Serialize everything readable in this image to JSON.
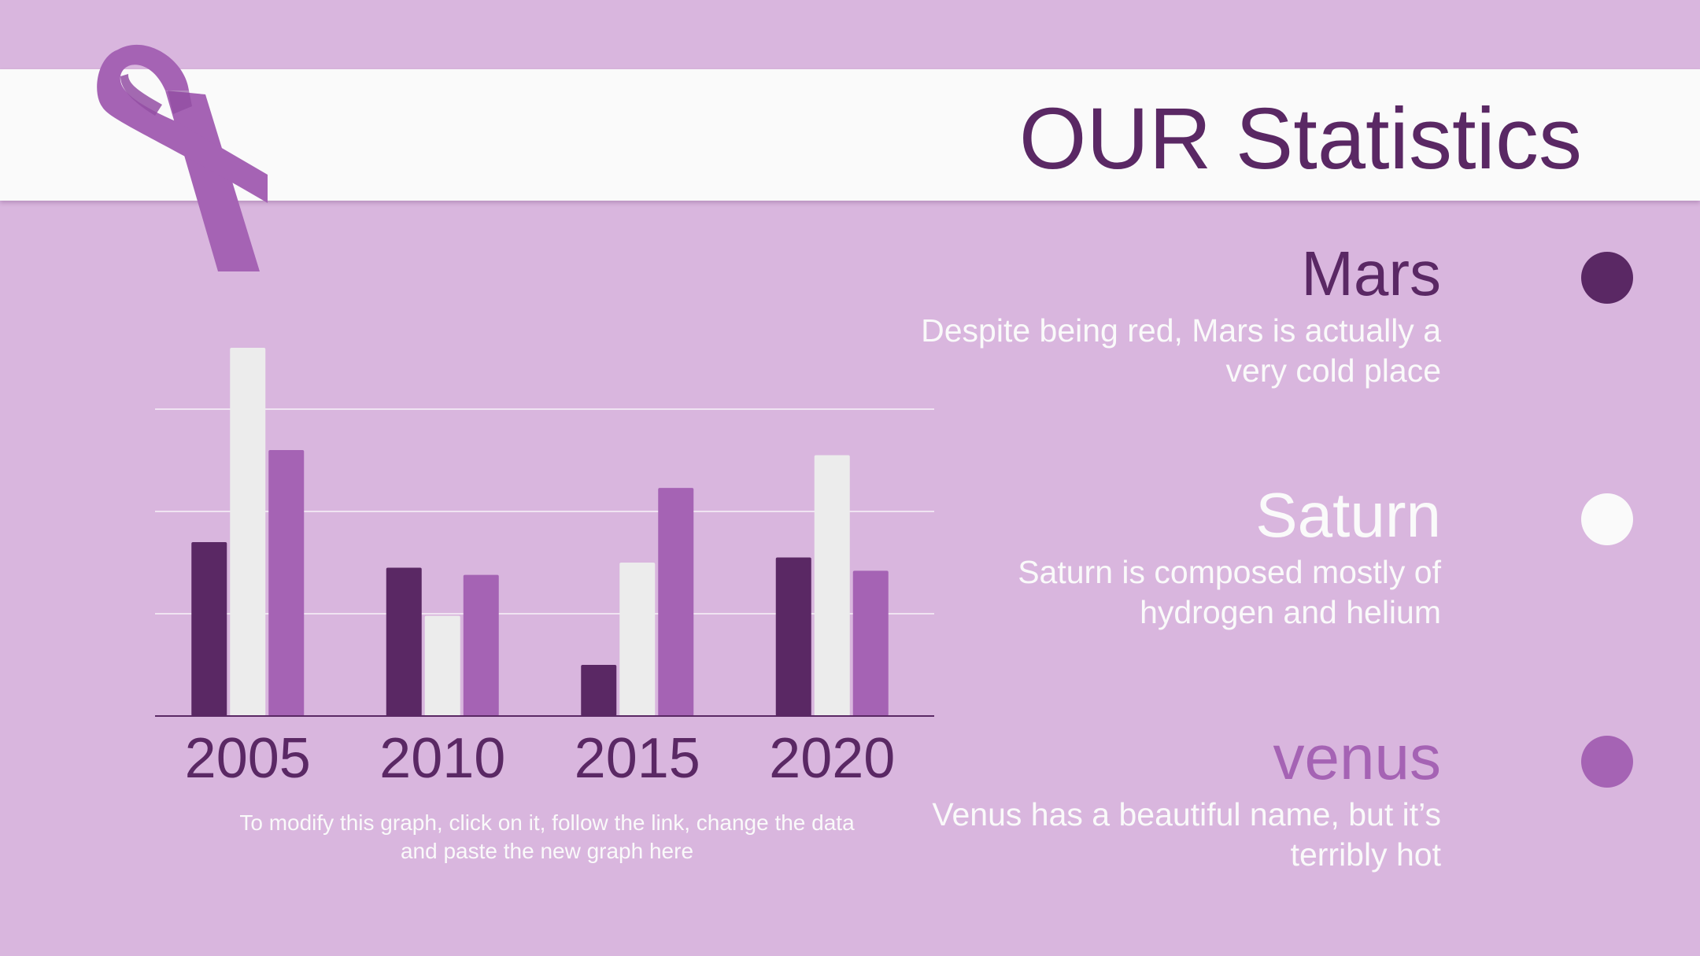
{
  "title": "OUR Statistics",
  "colors": {
    "background": "#d9b6de",
    "band": "#fafafa",
    "dark_purple": "#5a2864",
    "white": "#ececec",
    "medium_purple": "#a563b4"
  },
  "icons": {
    "ribbon": "awareness-ribbon-icon"
  },
  "chart_data": {
    "type": "bar",
    "categories": [
      "2005",
      "2010",
      "2015",
      "2020"
    ],
    "series": [
      {
        "name": "Mars",
        "color": "#5a2864",
        "values": [
          1.7,
          1.45,
          0.5,
          1.55
        ]
      },
      {
        "name": "Saturn",
        "color": "#ececec",
        "values": [
          3.6,
          0.98,
          1.5,
          2.55
        ]
      },
      {
        "name": "venus",
        "color": "#a563b4",
        "values": [
          2.6,
          1.38,
          2.23,
          1.42
        ]
      }
    ],
    "ylim": [
      0,
      4
    ],
    "grid": true,
    "ytick_labels_visible": false,
    "title": "",
    "xlabel": "",
    "ylabel": ""
  },
  "chart_note": "To modify this graph, click on it, follow the link, change the data and paste the new graph here",
  "legend": [
    {
      "name": "Mars",
      "color": "#5a2864",
      "name_color": "#5a2864",
      "description": "Despite being red, Mars is actually a very cold place"
    },
    {
      "name": "Saturn",
      "color": "#fafafa",
      "name_color": "#fafafa",
      "description": "Saturn is composed mostly of hydrogen and helium"
    },
    {
      "name": "venus",
      "color": "#a563b4",
      "name_color": "#a563b4",
      "description": "Venus has a beautiful name, but it’s terribly hot"
    }
  ]
}
